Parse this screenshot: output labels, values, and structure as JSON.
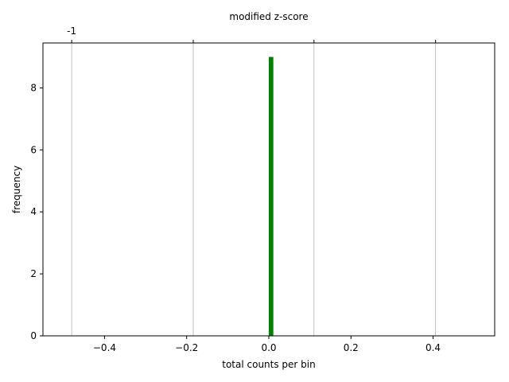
{
  "colors": {
    "bar": "#008000",
    "grid": "#b0b0b0",
    "axis": "#000000",
    "background": "#ffffff"
  },
  "chart_data": {
    "type": "bar",
    "title": "",
    "xlabel": "total counts per bin",
    "ylabel": "frequency",
    "top_xlabel": "modified z-score",
    "xlim": [
      -0.55,
      0.55
    ],
    "ylim": [
      0,
      9.45
    ],
    "x_ticks": [
      {
        "value": -0.4,
        "label": "−0.4"
      },
      {
        "value": -0.2,
        "label": "−0.2"
      },
      {
        "value": 0.0,
        "label": "0.0"
      },
      {
        "value": 0.2,
        "label": "0.2"
      },
      {
        "value": 0.4,
        "label": "0.4"
      }
    ],
    "y_ticks": [
      {
        "value": 0,
        "label": "0"
      },
      {
        "value": 2,
        "label": "2"
      },
      {
        "value": 4,
        "label": "4"
      },
      {
        "value": 6,
        "label": "6"
      },
      {
        "value": 8,
        "label": "8"
      }
    ],
    "top_ticks": [
      {
        "value": -0.48,
        "label": "-1"
      }
    ],
    "vertical_gridlines": [
      -0.48,
      -0.184,
      0.11,
      0.406
    ],
    "bars": [
      {
        "x_start": 0.0,
        "x_end": 0.011,
        "value": 9
      }
    ],
    "grid": true,
    "legend": "none"
  }
}
